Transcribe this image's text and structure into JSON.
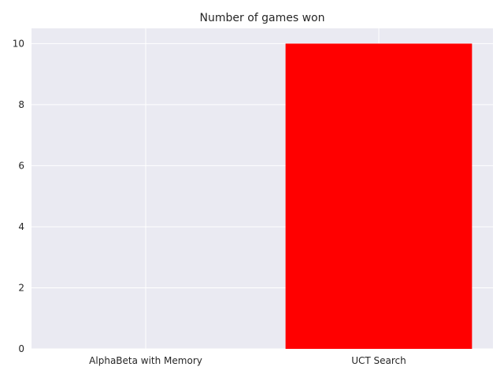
{
  "chart_data": {
    "type": "bar",
    "title": "Number of games won",
    "xlabel": "",
    "ylabel": "",
    "categories": [
      "AlphaBeta with Memory",
      "UCT Search"
    ],
    "values": [
      0,
      10
    ],
    "ylim": [
      0,
      10.5
    ],
    "yticks": [
      0,
      2,
      4,
      6,
      8,
      10
    ],
    "grid": true,
    "legend": "none",
    "colors": {
      "background": "#eaeaf2",
      "grid": "#ffffff",
      "bars": [
        "#ff0000",
        "#ff0000"
      ]
    }
  }
}
